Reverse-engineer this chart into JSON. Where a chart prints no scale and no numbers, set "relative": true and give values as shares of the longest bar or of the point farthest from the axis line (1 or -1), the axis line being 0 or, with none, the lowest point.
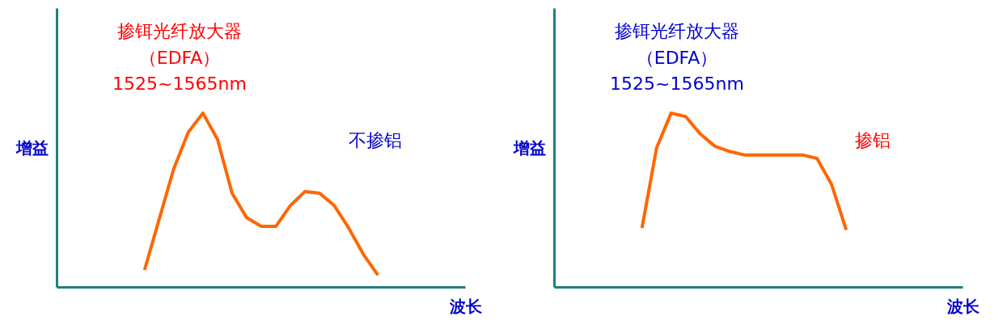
{
  "chart_data": [
    {
      "type": "line",
      "title": "掺铒光纤放大器",
      "subtitle": "（EDFA）",
      "annotations": [
        "1525~1565nm",
        "不掺铝"
      ],
      "xlabel": "波长",
      "ylabel": "增益",
      "relative": true,
      "grid": false,
      "marker": "none",
      "line_style": "solid",
      "categories": [
        null,
        null,
        null,
        null,
        null,
        null,
        null,
        null,
        null,
        null,
        null,
        null,
        null,
        null,
        null,
        null,
        null,
        null,
        null,
        null,
        null,
        null,
        null,
        null,
        null,
        null,
        null,
        null,
        null
      ],
      "series": [
        {
          "color": "#ff6600",
          "values": [
            null,
            null,
            null,
            null,
            null,
            null,
            0.1,
            0.39,
            0.68,
            0.89,
            1.0,
            0.85,
            0.54,
            0.4,
            0.35,
            0.35,
            0.47,
            0.55,
            0.54,
            0.47,
            0.34,
            0.19,
            0.07,
            null,
            null,
            null,
            null,
            null,
            null
          ]
        }
      ]
    },
    {
      "type": "line",
      "title": "掺铒光纤放大器",
      "subtitle": "（EDFA）",
      "annotations": [
        "1525~1565nm",
        "掺铝"
      ],
      "xlabel": "波长",
      "ylabel": "增益",
      "relative": true,
      "grid": false,
      "marker": "none",
      "line_style": "solid",
      "categories": [
        null,
        null,
        null,
        null,
        null,
        null,
        null,
        null,
        null,
        null,
        null,
        null,
        null,
        null,
        null,
        null,
        null,
        null,
        null,
        null,
        null,
        null,
        null,
        null,
        null,
        null,
        null,
        null,
        null
      ],
      "series": [
        {
          "color": "#ff6600",
          "values": [
            null,
            null,
            null,
            null,
            null,
            null,
            0.34,
            0.8,
            1.0,
            0.98,
            0.88,
            0.81,
            0.78,
            0.76,
            0.76,
            0.76,
            0.76,
            0.76,
            0.74,
            0.59,
            0.33,
            null,
            null,
            null,
            null,
            null,
            null,
            null,
            null
          ]
        }
      ]
    }
  ]
}
